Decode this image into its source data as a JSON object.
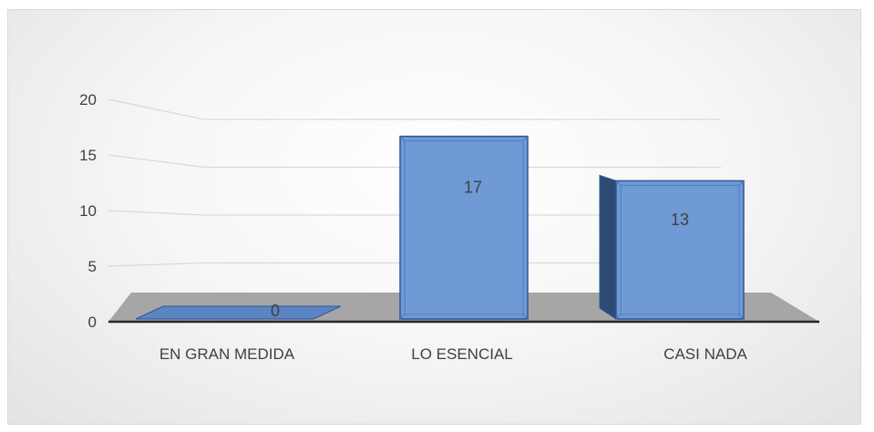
{
  "chart_data": {
    "type": "bar",
    "style": "3d-column",
    "categories": [
      "EN GRAN MEDIDA",
      "LO ESENCIAL",
      "CASI NADA"
    ],
    "values": [
      0,
      17,
      13
    ],
    "data_labels": [
      "0",
      "17",
      "13"
    ],
    "ylim": [
      0,
      20
    ],
    "yticks": [
      "0",
      "5",
      "10",
      "15",
      "20"
    ],
    "grid": true,
    "legend": "none",
    "colors": {
      "bar_front": "#6f9ad6",
      "bar_side": "#2d4a72",
      "bar_top": "#8fb3e4",
      "bar_edge": "#2f5597",
      "floor": "#a6a6a6",
      "gridline": "#d9d9d9",
      "axis": "#262626"
    }
  }
}
